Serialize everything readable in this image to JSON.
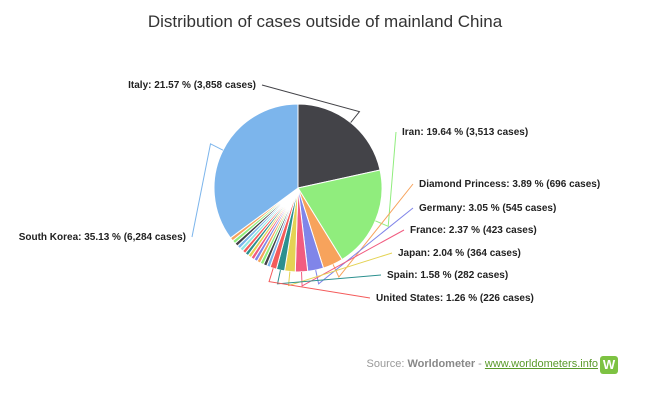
{
  "chart_data": {
    "type": "pie",
    "title": "Distribution of cases outside of mainland China",
    "slices": [
      {
        "name": "Italy",
        "percent": 21.57,
        "cases": "3,858",
        "label": "Italy: 21.57 % (3,858 cases)",
        "color": "#434348"
      },
      {
        "name": "Iran",
        "percent": 19.64,
        "cases": "3,513",
        "label": "Iran: 19.64 % (3,513 cases)",
        "color": "#90ed7d"
      },
      {
        "name": "Diamond Princess",
        "percent": 3.89,
        "cases": "696",
        "label": "Diamond Princess: 3.89 % (696 cases)",
        "color": "#f7a35c"
      },
      {
        "name": "Germany",
        "percent": 3.05,
        "cases": "545",
        "label": "Germany: 3.05 % (545 cases)",
        "color": "#8085e9"
      },
      {
        "name": "France",
        "percent": 2.37,
        "cases": "423",
        "label": "France: 2.37 % (423 cases)",
        "color": "#f15c80"
      },
      {
        "name": "Japan",
        "percent": 2.04,
        "cases": "364",
        "label": "Japan: 2.04 % (364 cases)",
        "color": "#e4d354"
      },
      {
        "name": "Spain",
        "percent": 1.58,
        "cases": "282",
        "label": "Spain: 1.58 % (282 cases)",
        "color": "#2b908f"
      },
      {
        "name": "United States",
        "percent": 1.26,
        "cases": "226",
        "label": "United States: 1.26 % (226 cases)",
        "color": "#f45b5b"
      },
      {
        "name": "",
        "percent": 9.47,
        "cases": "",
        "label": "",
        "color": "#91e8e1"
      },
      {
        "name": "South Korea",
        "percent": 35.13,
        "cases": "6,284",
        "label": "South Korea: 35.13 % (6,284 cases)",
        "color": "#7cb5ec"
      }
    ]
  },
  "source": {
    "prefix": "Source: ",
    "name": "Worldometer",
    "separator": " - ",
    "link": "www.worldometers.info",
    "logo": "W"
  }
}
